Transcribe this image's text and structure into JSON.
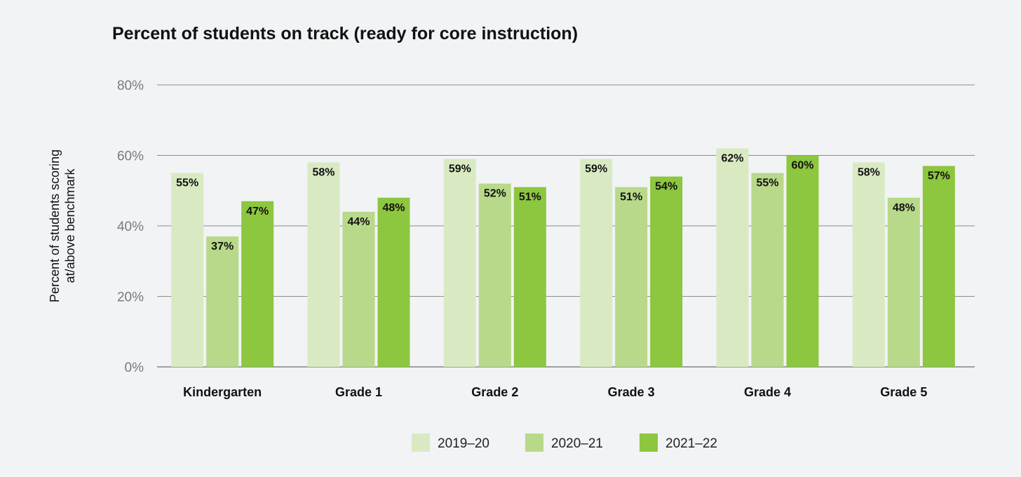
{
  "chart_data": {
    "type": "bar",
    "title": "Percent of students on track (ready for core instruction)",
    "ylabel_lines": [
      "Percent of students scoring",
      "at/above benchmark"
    ],
    "xlabel": "",
    "categories": [
      "Kindergarten",
      "Grade 1",
      "Grade 2",
      "Grade 3",
      "Grade 4",
      "Grade 5"
    ],
    "series": [
      {
        "name": "2019–20",
        "values": [
          55,
          58,
          59,
          59,
          62,
          58
        ],
        "color": "#d9eac3"
      },
      {
        "name": "2020–21",
        "values": [
          37,
          44,
          52,
          51,
          55,
          48
        ],
        "color": "#b8d98a"
      },
      {
        "name": "2021–22",
        "values": [
          47,
          48,
          51,
          54,
          60,
          57
        ],
        "color": "#8dc63f"
      }
    ],
    "data_labels": [
      [
        "55%",
        "58%",
        "59%",
        "59%",
        "62%",
        "58%"
      ],
      [
        "37%",
        "44%",
        "52%",
        "51%",
        "55%",
        "48%"
      ],
      [
        "47%",
        "48%",
        "51%",
        "54%",
        "60%",
        "57%"
      ]
    ],
    "ylim": [
      0,
      80
    ],
    "yticks": [
      0,
      20,
      40,
      60,
      80
    ],
    "ytick_labels": [
      "0%",
      "20%",
      "40%",
      "60%",
      "80%"
    ],
    "grid": true,
    "legend": "bottom-center"
  }
}
